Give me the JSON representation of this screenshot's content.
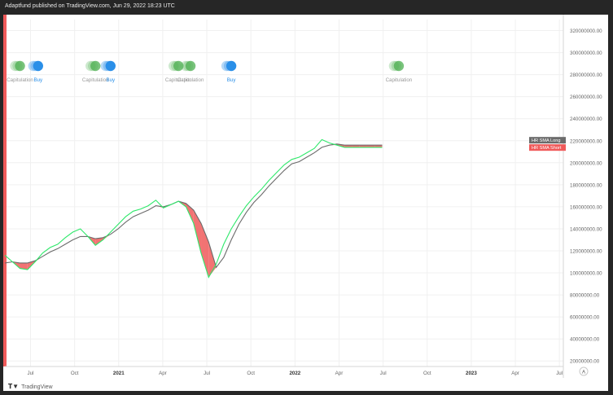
{
  "header": {
    "attribution": "Adaptfund published on TradingView.com, Jun 29, 2022 18:23 UTC"
  },
  "footer": {
    "logo_text": "TradingView",
    "scale_button": "A"
  },
  "legend": {
    "long_label": "HR SMA Long",
    "short_label": "HR SMA Short"
  },
  "colors": {
    "sma_short": "#2ee86a",
    "sma_long": "#6b6b6b",
    "fill_below": "#f05a5a",
    "buy": "#2a8fe8",
    "capitulation": "#4caf50",
    "label_long_bg": "#6b6b6b",
    "label_short_bg": "#f05a5a"
  },
  "chart_data": {
    "type": "line",
    "title": "",
    "xlabel": "",
    "ylabel": "",
    "x_ticks": [
      "Jul",
      "Oct",
      "2021",
      "Apr",
      "Jul",
      "Oct",
      "2022",
      "Apr",
      "Jul",
      "Oct",
      "2023",
      "Apr",
      "Jul"
    ],
    "y_ticks": [
      "20000000.00",
      "40000000.00",
      "60000000.00",
      "80000000.00",
      "100000000.00",
      "120000000.00",
      "140000000.00",
      "160000000.00",
      "180000000.00",
      "200000000.00",
      "220000000.00",
      "240000000.00",
      "260000000.00",
      "280000000.00",
      "300000000.00",
      "320000000.00"
    ],
    "ylim": [
      15000000,
      330000000
    ],
    "xlim": [
      0,
      37
    ],
    "grid": true,
    "series": [
      {
        "name": "HR SMA Short",
        "x": [
          0,
          0.5,
          1,
          1.5,
          2,
          2.5,
          3,
          3.5,
          4,
          4.5,
          5,
          5.5,
          6,
          6.5,
          7,
          7.5,
          8,
          8.5,
          9,
          9.5,
          10,
          10.5,
          11,
          11.5,
          12,
          12.5,
          13,
          13.5,
          14,
          14.5,
          15,
          15.5,
          16,
          16.5,
          17,
          17.5,
          18,
          18.5,
          19,
          19.5,
          20,
          20.5,
          21,
          21.5,
          22,
          22.5,
          23,
          23.5,
          24,
          24.5,
          25
        ],
        "values": [
          116000000,
          110000000,
          104000000,
          103000000,
          110000000,
          118000000,
          123000000,
          126000000,
          132000000,
          137000000,
          140000000,
          133000000,
          125000000,
          130000000,
          137000000,
          144000000,
          151000000,
          156000000,
          158000000,
          161000000,
          166000000,
          159000000,
          162000000,
          165000000,
          160000000,
          145000000,
          118000000,
          96000000,
          108000000,
          126000000,
          140000000,
          151000000,
          161000000,
          169000000,
          176000000,
          184000000,
          191000000,
          198000000,
          203000000,
          205000000,
          209000000,
          213000000,
          221000000,
          218000000,
          216000000,
          214000000,
          214000000,
          214000000,
          214000000,
          214000000,
          214000000
        ]
      },
      {
        "name": "HR SMA Long",
        "x": [
          0,
          0.5,
          1,
          1.5,
          2,
          2.5,
          3,
          3.5,
          4,
          4.5,
          5,
          5.5,
          6,
          6.5,
          7,
          7.5,
          8,
          8.5,
          9,
          9.5,
          10,
          10.5,
          11,
          11.5,
          12,
          12.5,
          13,
          13.5,
          14,
          14.5,
          15,
          15.5,
          16,
          16.5,
          17,
          17.5,
          18,
          18.5,
          19,
          19.5,
          20,
          20.5,
          21,
          21.5,
          22,
          22.5,
          23,
          23.5,
          24,
          24.5,
          25
        ],
        "values": [
          109000000,
          110000000,
          109000000,
          109000000,
          111000000,
          115000000,
          119000000,
          122000000,
          126000000,
          130000000,
          133000000,
          133000000,
          131000000,
          132000000,
          135000000,
          140000000,
          146000000,
          151000000,
          154000000,
          157000000,
          161000000,
          160000000,
          162000000,
          165000000,
          163000000,
          157000000,
          145000000,
          128000000,
          105000000,
          114000000,
          130000000,
          144000000,
          155000000,
          164000000,
          171000000,
          179000000,
          186000000,
          193000000,
          199000000,
          201000000,
          205000000,
          209000000,
          214000000,
          216000000,
          217000000,
          216000000,
          216000000,
          216000000,
          216000000,
          216000000,
          216000000
        ]
      }
    ],
    "signals": [
      {
        "x": 1.0,
        "label": "Capitulation",
        "type": "capitulation"
      },
      {
        "x": 2.2,
        "label": "Buy",
        "type": "buy"
      },
      {
        "x": 6.0,
        "label": "Capitulation",
        "type": "capitulation"
      },
      {
        "x": 7.0,
        "label": "Buy",
        "type": "buy"
      },
      {
        "x": 11.5,
        "label": "Capitulation",
        "type": "capitulation"
      },
      {
        "x": 12.3,
        "label": "Capitulation",
        "type": "capitulation"
      },
      {
        "x": 15.0,
        "label": "Buy",
        "type": "buy"
      },
      {
        "x": 26.1,
        "label": "Capitulation",
        "type": "capitulation"
      }
    ],
    "last_values": {
      "long": 216000000,
      "short": 214000000
    }
  }
}
